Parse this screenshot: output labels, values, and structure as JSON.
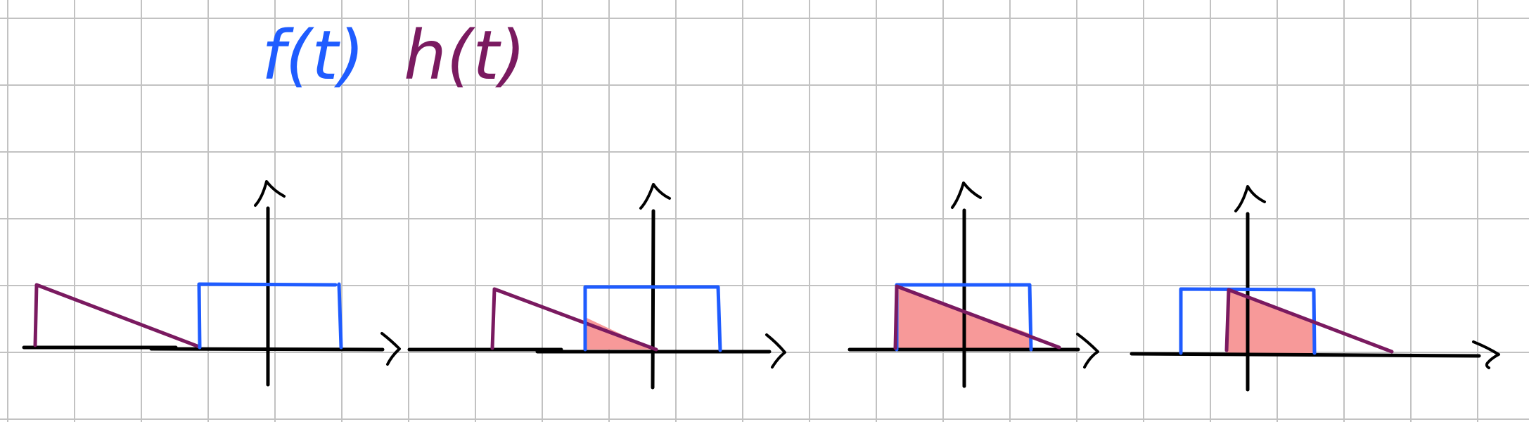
{
  "labels": {
    "f": "f(t)",
    "h": "h(t)"
  },
  "colors": {
    "f_signal": "#1f5cff",
    "h_signal": "#7a1a60",
    "overlap_fill": "#f79999",
    "axis": "#000000",
    "grid": "#c2c2c2",
    "background": "#ffffff"
  },
  "panels": [
    {
      "name": "panel-1",
      "overlap": "none"
    },
    {
      "name": "panel-2",
      "overlap": "partial"
    },
    {
      "name": "panel-3",
      "overlap": "full"
    },
    {
      "name": "panel-4",
      "overlap": "partial-right"
    }
  ]
}
